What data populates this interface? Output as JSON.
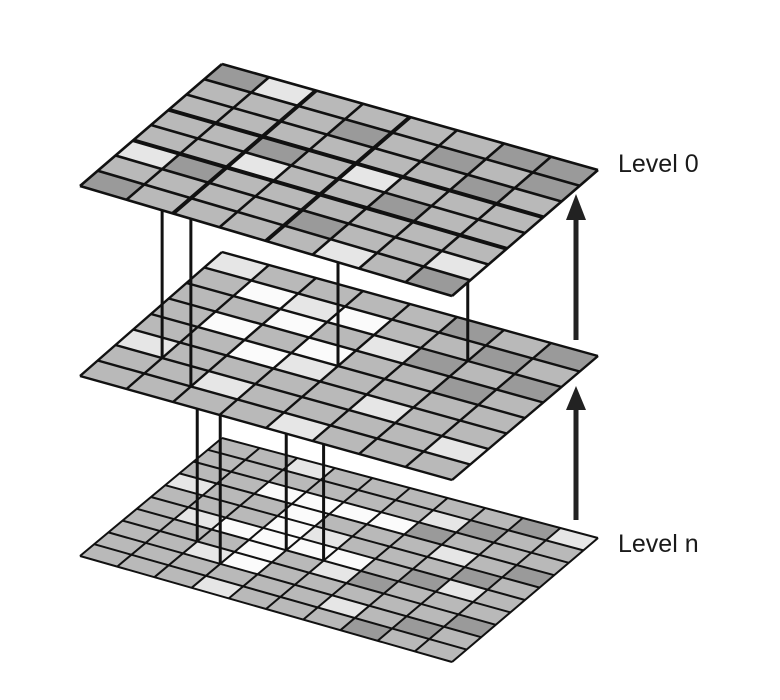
{
  "labels": {
    "top": "Level 0",
    "bottom": "Level n"
  },
  "colors": {
    "background": "#ffffff",
    "grid_line": "#111111",
    "arrow": "#222222",
    "fill_light": "#e6e6e6",
    "fill_mid": "#b9b9b9",
    "fill_dark": "#9a9a9a",
    "fill_white": "#fbfbfb"
  },
  "levels": [
    {
      "name": "top-level",
      "subdivisions": 8,
      "tone": "coarse"
    },
    {
      "name": "middle-level",
      "subdivisions": 8,
      "tone": "medium"
    },
    {
      "name": "bottom-level",
      "subdivisions": 10,
      "tone": "fine"
    }
  ]
}
